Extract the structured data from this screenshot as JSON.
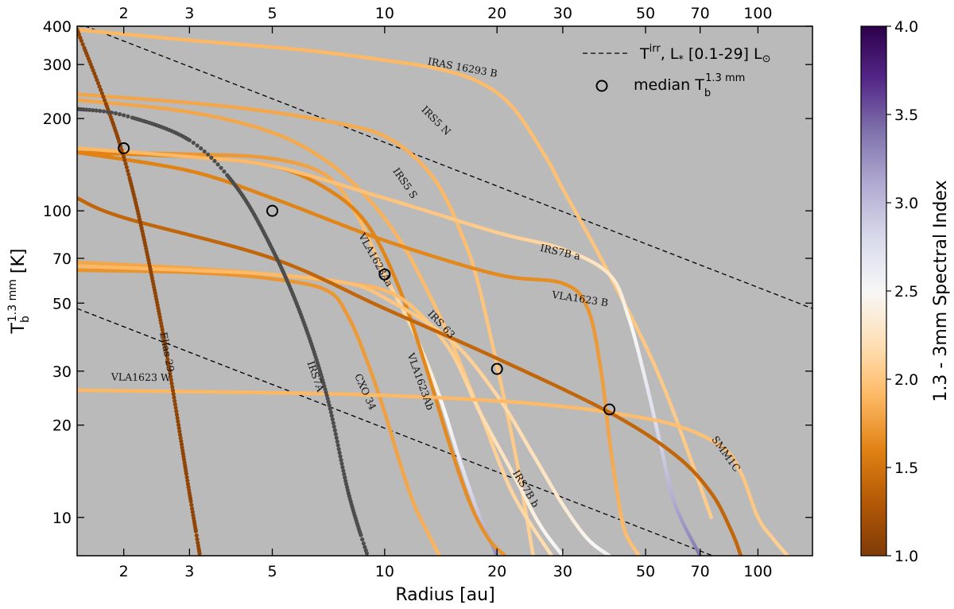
{
  "chart_data": {
    "type": "line",
    "title": "",
    "xlabel": "Radius [au]",
    "ylabel": "T_b^{1.3 mm} [K]",
    "xscale": "log",
    "yscale": "log",
    "xlim": [
      1.5,
      140
    ],
    "ylim": [
      7.5,
      400
    ],
    "x_ticks": [
      2,
      3,
      5,
      10,
      20,
      30,
      50,
      70,
      100
    ],
    "x_top_ticks": [
      2,
      3,
      5,
      10,
      20,
      30,
      50,
      70,
      100
    ],
    "y_ticks": [
      10,
      20,
      30,
      50,
      70,
      100,
      200,
      300,
      400
    ],
    "colorbar": {
      "label": "1.3 - 3mm Spectral Index",
      "range": [
        1.0,
        4.0
      ],
      "ticks": [
        "1.0",
        "1.5",
        "2.0",
        "2.5",
        "3.0",
        "3.5",
        "4.0"
      ],
      "colors": [
        "#7f3b08",
        "#b35806",
        "#e08214",
        "#fdb863",
        "#fee0b6",
        "#f7f7f7",
        "#d8daeb",
        "#b2abd2",
        "#8073ac",
        "#542788",
        "#2d004b"
      ]
    },
    "legend": {
      "position": "top-right",
      "dashed_label_main": "T",
      "dashed_label_sup": "irr",
      "dashed_label_rest": ", L",
      "dashed_label_star": "*",
      "dashed_label_range": " [0.1-29] L",
      "dashed_label_sun": "⊙",
      "marker_label_main": "median T",
      "marker_label_sub": "b",
      "marker_label_sup": "1.3 mm"
    },
    "reference_lines": [
      {
        "name": "T_irr L*=29 Lsun",
        "x": [
          1.5,
          140
        ],
        "y": [
          410,
          48
        ]
      },
      {
        "name": "T_irr L*=0.1 Lsun",
        "x": [
          1.5,
          140
        ],
        "y": [
          48,
          5.6
        ]
      }
    ],
    "series": [
      {
        "name": "IRAS 16293 B",
        "style": "line",
        "index_start": 1.9,
        "index_end": 2.05,
        "x": [
          1.5,
          3,
          6,
          10,
          14,
          18,
          22,
          27,
          30,
          40,
          55,
          75
        ],
        "y": [
          390,
          360,
          335,
          310,
          290,
          262,
          218,
          150,
          118,
          62,
          28,
          10
        ],
        "label_at": [
          13,
          300
        ]
      },
      {
        "name": "IRS5 N",
        "style": "line",
        "index_start": 1.8,
        "index_end": 2.1,
        "x": [
          1.5,
          3,
          5,
          8,
          10,
          12,
          14,
          16,
          18,
          22,
          25
        ],
        "y": [
          240,
          225,
          210,
          190,
          175,
          150,
          120,
          85,
          55,
          18,
          7.5
        ],
        "label_at": [
          12.5,
          213
        ]
      },
      {
        "name": "IRS5 S",
        "style": "line",
        "index_start": 1.8,
        "index_end": 2.2,
        "x": [
          1.5,
          3,
          5,
          7,
          9,
          11,
          13,
          15,
          18,
          22,
          28
        ],
        "y": [
          230,
          210,
          180,
          145,
          110,
          80,
          55,
          38,
          22,
          12,
          7.5
        ],
        "label_at": [
          10.5,
          135
        ]
      },
      {
        "name": "VLA1623Aa",
        "style": "line",
        "index_start": 1.7,
        "index_end": 3.3,
        "x": [
          1.5,
          3,
          5,
          7,
          8.5,
          10,
          12,
          14,
          16,
          18,
          20
        ],
        "y": [
          155,
          153,
          148,
          130,
          95,
          62,
          40,
          25,
          15,
          10,
          7.5
        ],
        "label_at": [
          8.5,
          83
        ]
      },
      {
        "name": "VLA1623Ab",
        "style": "line",
        "index_start": 1.6,
        "index_end": 1.7,
        "x": [
          1.5,
          3,
          5,
          7,
          9,
          11,
          13,
          15,
          17,
          19,
          21
        ],
        "y": [
          155,
          150,
          140,
          118,
          90,
          55,
          30,
          17,
          11,
          8.5,
          7.5
        ],
        "label_at": [
          11.5,
          34
        ]
      },
      {
        "name": "IRS7B a",
        "style": "line",
        "index_start": 1.9,
        "index_end": 3.4,
        "x": [
          1.5,
          3,
          5,
          10,
          20,
          30,
          40,
          45,
          50,
          55,
          60,
          70
        ],
        "y": [
          160,
          150,
          140,
          110,
          85,
          75,
          62,
          45,
          28,
          17,
          11,
          7.5
        ],
        "label_at": [
          26,
          74
        ]
      },
      {
        "name": "VLA1623 B",
        "style": "line",
        "index_start": 1.6,
        "index_end": 2.0,
        "x": [
          1.5,
          3,
          5,
          10,
          20,
          30,
          35,
          38,
          40,
          42,
          44,
          48
        ],
        "y": [
          155,
          135,
          110,
          80,
          62,
          58,
          48,
          30,
          18,
          12,
          9,
          7.5
        ],
        "label_at": [
          28,
          52
        ]
      },
      {
        "name": "IRS 63",
        "style": "line",
        "index_start": 1.8,
        "index_end": 2.6,
        "x": [
          1.5,
          3,
          5,
          8,
          10,
          12,
          15,
          18,
          22,
          26,
          30
        ],
        "y": [
          68,
          65,
          62,
          58,
          55,
          48,
          35,
          22,
          14,
          9.5,
          7.5
        ],
        "label_at": [
          13,
          46
        ]
      },
      {
        "name": "CXO 34",
        "style": "line",
        "index_start": 1.7,
        "index_end": 1.9,
        "x": [
          1.5,
          3,
          5,
          7,
          8,
          9,
          10,
          11,
          12,
          13,
          14
        ],
        "y": [
          64,
          63,
          60,
          55,
          45,
          32,
          22,
          15,
          11,
          9,
          7.5
        ],
        "label_at": [
          8.3,
          29
        ]
      },
      {
        "name": "IRS7B b",
        "style": "line",
        "index_start": 1.9,
        "index_end": 2.6,
        "x": [
          1.5,
          3,
          5,
          8,
          10,
          15,
          20,
          25,
          30,
          35,
          40
        ],
        "y": [
          66,
          64,
          62,
          58,
          52,
          38,
          25,
          16,
          11,
          8.5,
          7.5
        ],
        "label_at": [
          22,
          14
        ]
      },
      {
        "name": "VLA1623 W",
        "style": "line",
        "index_start": 1.9,
        "index_end": 2.1,
        "x": [
          1.5,
          5,
          10,
          20,
          30,
          40,
          60,
          80,
          90,
          100,
          110,
          120
        ],
        "y": [
          26,
          25.5,
          25,
          24,
          23,
          22,
          20,
          17,
          14,
          10,
          8.5,
          7.5
        ],
        "label_at": [
          1.85,
          28
        ]
      },
      {
        "name": "SMM1C",
        "style": "line",
        "index_start": 1.4,
        "index_end": 1.4,
        "median_r": [
          40
        ],
        "median_t": [
          22.5
        ],
        "x": [
          1.5,
          2,
          5,
          10,
          20,
          40,
          60,
          75,
          85,
          90
        ],
        "y": [
          110,
          95,
          70,
          48,
          33,
          22,
          16,
          12,
          9,
          7.5
        ],
        "label_at": [
          75,
          18
        ]
      },
      {
        "name": "Elias 29",
        "style": "dots",
        "index_start": 1.1,
        "index_end": 1.1,
        "x": [
          1.5,
          2,
          2.5,
          3,
          3.2
        ],
        "y": [
          390,
          150,
          45,
          12,
          7.5
        ],
        "label_at": [
          2.5,
          40
        ]
      },
      {
        "name": "IRS7A",
        "style": "dots",
        "color": "#4d4d4d",
        "x": [
          1.5,
          2,
          3,
          4,
          5,
          6,
          7,
          8,
          9
        ],
        "y": [
          215,
          205,
          170,
          120,
          75,
          45,
          25,
          12,
          7.5
        ],
        "label_at": [
          6.2,
          32
        ]
      }
    ],
    "median_points": [
      {
        "x": 2,
        "y": 160
      },
      {
        "x": 5,
        "y": 100
      },
      {
        "x": 10,
        "y": 62
      },
      {
        "x": 20,
        "y": 30.5
      },
      {
        "x": 40,
        "y": 22.5
      }
    ]
  }
}
